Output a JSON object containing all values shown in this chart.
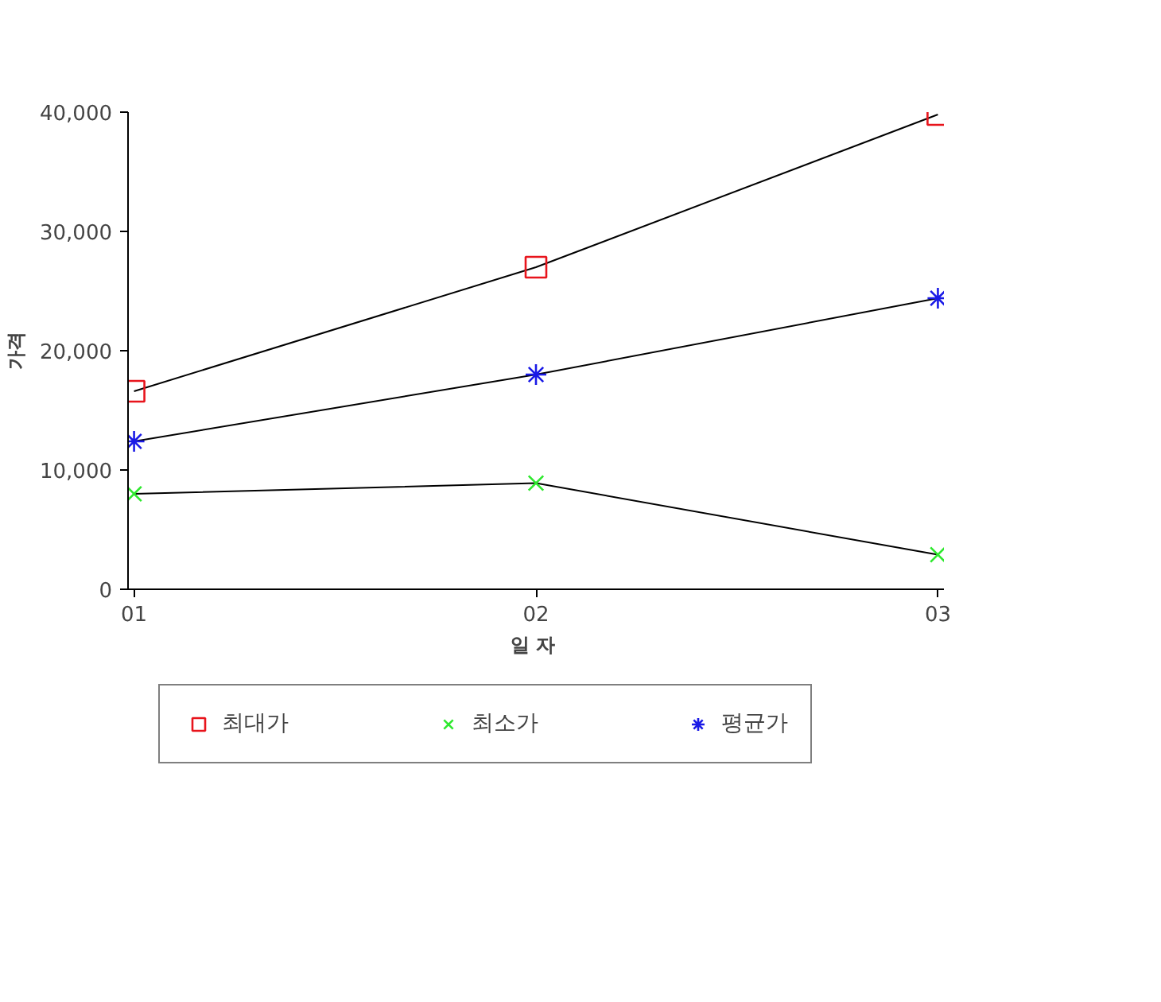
{
  "chart_data": {
    "type": "line",
    "xlabel": "일  자",
    "ylabel": "가격",
    "categories": [
      "01",
      "02",
      "03"
    ],
    "ylim": [
      0,
      40000
    ],
    "yticks": [
      {
        "value": 0,
        "label": "0"
      },
      {
        "value": 10000,
        "label": "10,000"
      },
      {
        "value": 20000,
        "label": "20,000"
      },
      {
        "value": 30000,
        "label": "30,000"
      },
      {
        "value": 40000,
        "label": "40,000"
      }
    ],
    "legend": "bottom",
    "grid": false,
    "series": [
      {
        "name": "최대가",
        "color": "#e8141c",
        "marker": "square",
        "values": [
          16600,
          27000,
          39800
        ]
      },
      {
        "name": "최소가",
        "color": "#2ee82e",
        "marker": "x",
        "values": [
          8000,
          8900,
          2900
        ]
      },
      {
        "name": "평균가",
        "color": "#1a1ae6",
        "marker": "cross",
        "values": [
          12400,
          18000,
          24400
        ]
      }
    ]
  }
}
